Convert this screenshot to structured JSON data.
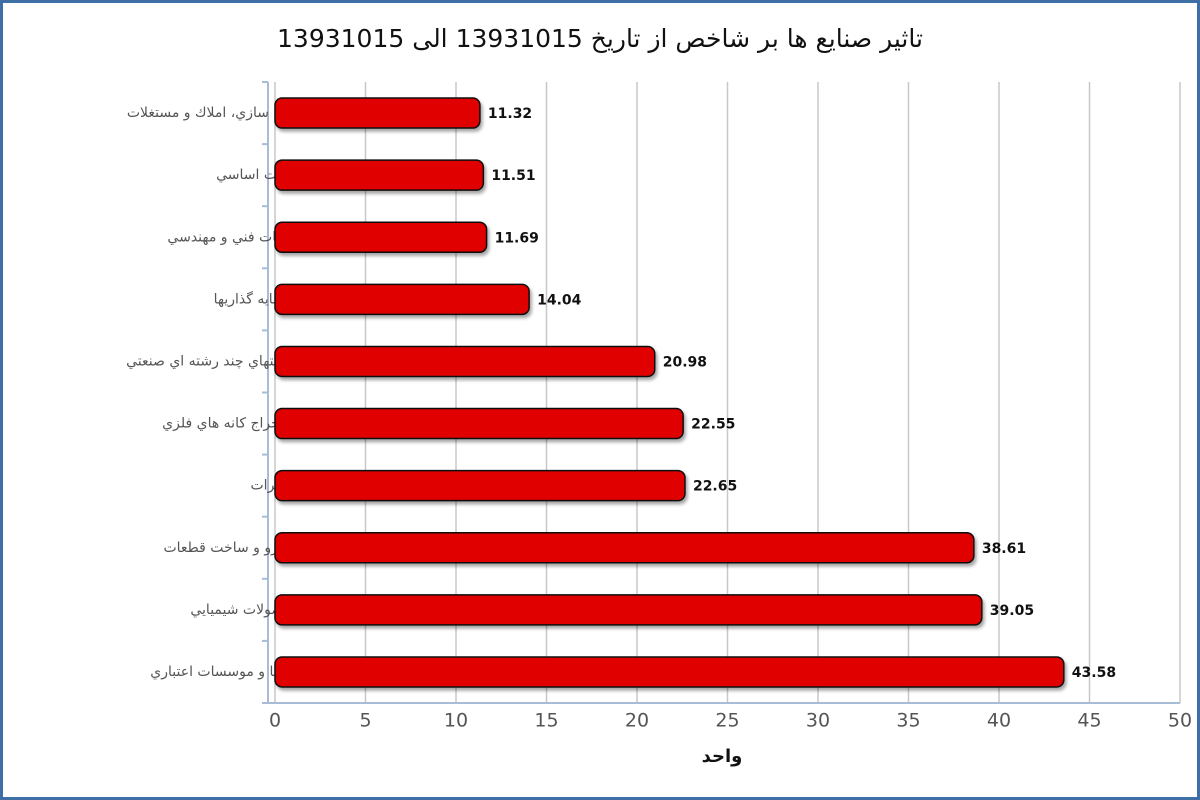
{
  "chart_data": {
    "type": "bar",
    "orientation": "horizontal",
    "title": "تاثیر صنایع ها بر شاخص از تاریخ 13931015 الی 13931015",
    "x_label": "واحد",
    "categories": [
      "انبوه سازي، املاك و مستغلات",
      "فلزات اساسي",
      "خدمات فني و مهندسي",
      "سرمايه گذاريها",
      "شركتهاي چند رشته اي صنعتي",
      "استخراج كانه هاي فلزي",
      "مخابرات",
      "خودرو و ساخت قطعات",
      "محصولات شيميايي",
      "بانكها و موسسات اعتباري"
    ],
    "values": [
      11.32,
      11.51,
      11.69,
      14.04,
      20.98,
      22.55,
      22.65,
      38.61,
      39.05,
      43.58
    ],
    "color": "#e00000",
    "xlim": [
      0,
      50
    ],
    "xticks": [
      0,
      5,
      10,
      15,
      20,
      25,
      30,
      35,
      40,
      45,
      50
    ],
    "grid": true
  }
}
